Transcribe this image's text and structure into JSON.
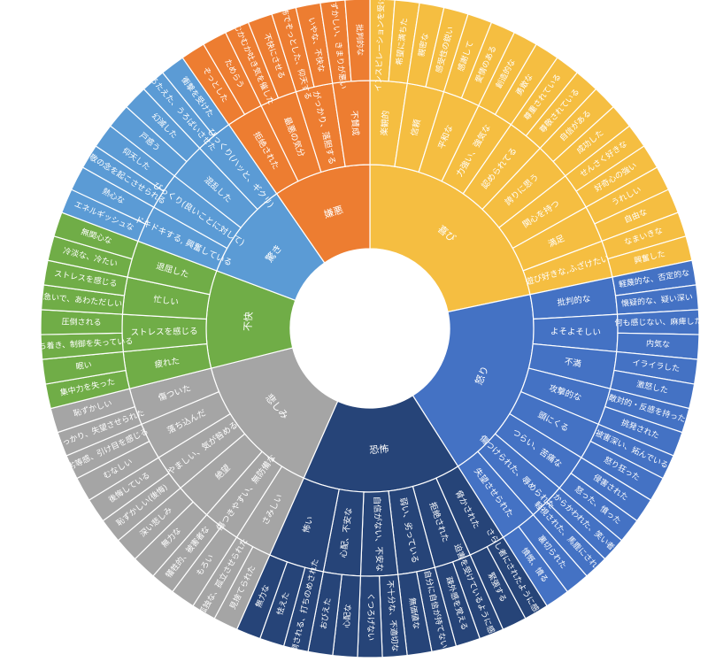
{
  "chart_data": {
    "type": "sunburst",
    "colors": {
      "喜び": "#F5BE41",
      "怒り": "#4472C4",
      "恐怖": "#264478",
      "悲しみ": "#A5A5A5",
      "不快": "#70AD47",
      "驚き": "#5B9BD5",
      "嫌悪": "#ED7D31"
    },
    "categories": [
      {
        "name": "喜び",
        "children": [
          {
            "name": "楽観的",
            "children": [
              "インスピレーションを受けた",
              "希望に満ちた"
            ]
          },
          {
            "name": "信頼",
            "children": [
              "親密な",
              "感受性の鋭い"
            ]
          },
          {
            "name": "平和な",
            "children": [
              "感謝して",
              "愛情のある"
            ]
          },
          {
            "name": "力強い、強気な",
            "children": [
              "創造的な",
              "勇敢な"
            ]
          },
          {
            "name": "認められてる",
            "children": [
              "尊重されている",
              "尊敬されている"
            ]
          },
          {
            "name": "誇りに思う",
            "children": [
              "自信がある",
              "成功した"
            ]
          },
          {
            "name": "関心を持つ",
            "children": [
              "せんさく好きな",
              "好奇心の強い"
            ]
          },
          {
            "name": "満足",
            "children": [
              "うれしい",
              "自由な"
            ]
          },
          {
            "name": "遊び好きな,ふざけたい",
            "children": [
              "なまいきな",
              "興奮した"
            ]
          }
        ]
      },
      {
        "name": "怒り",
        "children": [
          {
            "name": "批判的な",
            "children": [
              "軽蔑的な、否定的な",
              "懐疑的な、疑い深い"
            ]
          },
          {
            "name": "よそよそしい",
            "children": [
              "何も感じない、麻痺した",
              "内気な"
            ]
          },
          {
            "name": "不満",
            "children": [
              "イライラした",
              "激怒した"
            ]
          },
          {
            "name": "攻撃的な",
            "children": [
              "敵対的・反感を持った",
              "挑発された"
            ]
          },
          {
            "name": "頭にくる",
            "children": [
              "被害深い、妬んでいる",
              "怒り狂った"
            ]
          },
          {
            "name": "つらい、苦痛な",
            "children": [
              "侵害された",
              "怒った、憤った"
            ]
          },
          {
            "name": "傷つけられた、辱められた",
            "children": [
              "からかわれた、笑い者",
              "軽視された、馬鹿にされた"
            ]
          },
          {
            "name": "失望させられた",
            "children": [
              "裏切られた",
              "憤慨、憤る"
            ]
          }
        ]
      },
      {
        "name": "恐怖",
        "children": [
          {
            "name": "脅かされた",
            "children": [
              "さらし者にされたように感じる",
              "緊張する"
            ]
          },
          {
            "name": "拒絶された",
            "children": [
              "迫害を受けているように感じる",
              "疎外感を覚える"
            ]
          },
          {
            "name": "弱い、劣っている",
            "children": [
              "自分に自信が持てない",
              "無価値な"
            ]
          },
          {
            "name": "自信がない、不安な",
            "children": [
              "不十分な、不適切な",
              "くつろげない"
            ]
          },
          {
            "name": "心配、不安な",
            "children": [
              "心配な",
              "おびえた"
            ]
          },
          {
            "name": "怖い",
            "children": [
              "圧倒される、打ちのめされた",
              "怯えた",
              "無力な"
            ]
          }
        ]
      },
      {
        "name": "悲しみ",
        "children": [
          {
            "name": "さみしい",
            "children": [
              "見捨てられた",
              "孤独な、孤立させられた"
            ]
          },
          {
            "name": "傷つきやすい、無防備な",
            "children": [
              "もろい",
              "犠牲的、被害者な"
            ]
          },
          {
            "name": "絶望",
            "children": [
              "無力な",
              "深い悲しみ"
            ]
          },
          {
            "name": "やましい、気が咎める",
            "children": [
              "恥ずかしい(後悔)",
              "後悔している"
            ]
          },
          {
            "name": "落ち込んだ",
            "children": [
              "むなしい",
              "劣等感、引け目を感じる"
            ]
          },
          {
            "name": "傷ついた",
            "children": [
              "がっかり、失望させられた",
              "恥ずかしい"
            ]
          }
        ]
      },
      {
        "name": "不快",
        "children": [
          {
            "name": "疲れた",
            "children": [
              "集中力を失った",
              "眠い"
            ]
          },
          {
            "name": "ストレスを感じる",
            "children": [
              "落ち着き、制御を失っている",
              "圧倒される"
            ]
          },
          {
            "name": "忙しい",
            "children": [
              "急いで、あわただしい",
              "ストレスを感じる"
            ]
          },
          {
            "name": "退屈した",
            "children": [
              "冷淡な、冷たい",
              "無関心な"
            ]
          }
        ]
      },
      {
        "name": "驚き",
        "children": [
          {
            "name": "ドキドキする, 興奮している",
            "children": [
              "エネルギッシュな",
              "熱心な"
            ]
          },
          {
            "name": "びっくり(良いことに対して)",
            "children": [
              "畏敬の念を起こさせられる",
              "仰天した"
            ]
          },
          {
            "name": "混乱した",
            "children": [
              "戸惑う",
              "幻滅した"
            ]
          },
          {
            "name": "びっくり(ハッと、ギクリ)",
            "children": [
              "うろたえた、うろばいさせた",
              "衝撃を受けた"
            ]
          }
        ]
      },
      {
        "name": "嫌悪",
        "children": [
          {
            "name": "拒絶された",
            "children": [
              "ぞっとした",
              "ためらう"
            ]
          },
          {
            "name": "最悪の気分",
            "children": [
              "むかむか吐き気を催した",
              "不快にさせる"
            ]
          },
          {
            "name": "がっかり、落胆する",
            "children": [
              "恐怖でぞっとした、仰天する",
              "いやな、不快な"
            ]
          },
          {
            "name": "不賛成",
            "children": [
              "恥ずかしい、きまりが悪い",
              "批判的な"
            ]
          }
        ]
      }
    ]
  }
}
